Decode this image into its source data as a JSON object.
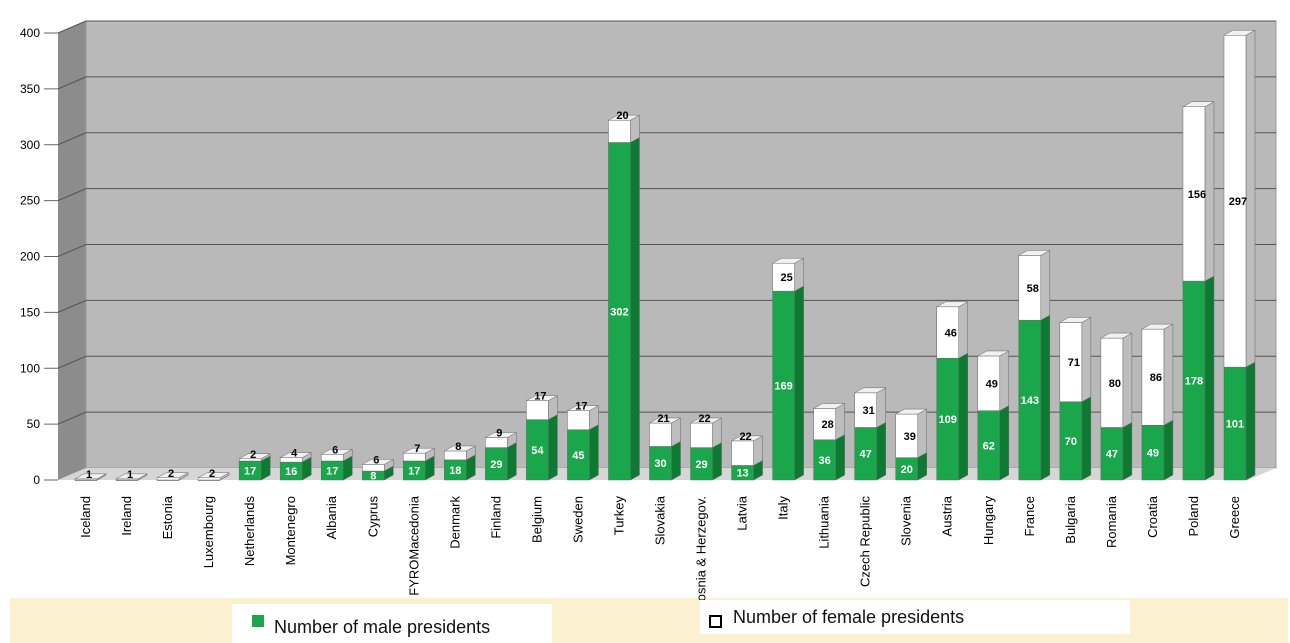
{
  "chart_data": {
    "type": "bar",
    "stacked": true,
    "three_d": true,
    "categories": [
      "Iceland",
      "Ireland",
      "Estonia",
      "Luxembourg",
      "Netherlands",
      "Montenegro",
      "Albania",
      "Cyprus",
      "FYROMacedonia",
      "Denmark",
      "Finland",
      "Belgium",
      "Sweden",
      "Turkey",
      "Slovakia",
      "Bosnia & Herzegov.",
      "Latvia",
      "Italy",
      "Lithuania",
      "Czech Republic",
      "Slovenia",
      "Austria",
      "Hungary",
      "France",
      "Bulgaria",
      "Romania",
      "Croatia",
      "Poland",
      "Greece"
    ],
    "series": [
      {
        "name": "Number of male presidents",
        "color": "#1aa64a",
        "values": [
          null,
          null,
          null,
          null,
          17,
          16,
          17,
          8,
          17,
          18,
          29,
          54,
          45,
          302,
          30,
          29,
          13,
          169,
          36,
          47,
          20,
          109,
          62,
          143,
          70,
          47,
          49,
          178,
          101
        ]
      },
      {
        "name": "Number of female presidents",
        "color": "#ffffff",
        "values": [
          1,
          1,
          2,
          2,
          2,
          4,
          6,
          6,
          7,
          8,
          9,
          17,
          17,
          20,
          21,
          22,
          22,
          25,
          28,
          31,
          39,
          46,
          49,
          58,
          71,
          80,
          86,
          156,
          297
        ]
      }
    ],
    "yticks": [
      0,
      50,
      100,
      150,
      200,
      250,
      300,
      350,
      400
    ],
    "ylim": [
      0,
      400
    ],
    "grid": true,
    "legend_position": "bottom"
  }
}
